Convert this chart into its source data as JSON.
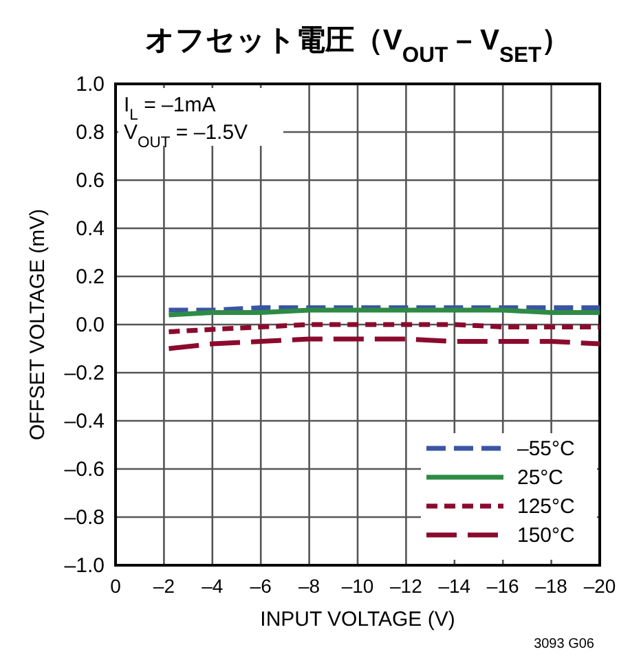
{
  "chart_data": {
    "type": "line",
    "title": "オフセット電圧（V$_{OUT}$ – V$_{SET}$）",
    "xlabel": "INPUT VOLTAGE (V)",
    "ylabel": "OFFSET VOLTAGE (mV)",
    "annotations": [
      "I$_{L}$ = –1mA",
      "V$_{OUT}$ = –1.5V",
      "3093 G06"
    ],
    "x": [
      -2.2,
      -4,
      -6,
      -8,
      -10,
      -12,
      -14,
      -16,
      -18,
      -20
    ],
    "series": [
      {
        "name": "–55°C",
        "color": "#3a55a4",
        "line_style": "dashed",
        "values": [
          0.06,
          0.06,
          0.07,
          0.07,
          0.07,
          0.07,
          0.07,
          0.07,
          0.07,
          0.07
        ]
      },
      {
        "name": "25°C",
        "color": "#2e8b45",
        "line_style": "solid",
        "values": [
          0.04,
          0.05,
          0.05,
          0.06,
          0.06,
          0.06,
          0.06,
          0.06,
          0.05,
          0.05
        ]
      },
      {
        "name": "125°C",
        "color": "#8b0a2e",
        "line_style": "dotted",
        "values": [
          -0.03,
          -0.02,
          -0.01,
          0.0,
          0.0,
          0.0,
          0.0,
          -0.01,
          -0.01,
          -0.01
        ]
      },
      {
        "name": "150°C",
        "color": "#8b0a2e",
        "line_style": "dashed",
        "values": [
          -0.1,
          -0.08,
          -0.07,
          -0.06,
          -0.06,
          -0.06,
          -0.07,
          -0.07,
          -0.07,
          -0.08
        ]
      }
    ],
    "xlim": [
      0,
      -20
    ],
    "ylim": [
      -1.0,
      1.0
    ],
    "xticks": [
      0,
      {
        "value": -2,
        "label": "–2"
      },
      {
        "value": -4,
        "label": "–4"
      },
      {
        "value": -6,
        "label": "–6"
      },
      {
        "value": -8,
        "label": "–8"
      },
      {
        "value": -10,
        "label": "–10"
      },
      {
        "value": -12,
        "label": "–12"
      },
      {
        "value": -14,
        "label": "–14"
      },
      {
        "value": -16,
        "label": "–16"
      },
      {
        "value": -18,
        "label": "–18"
      },
      {
        "value": -20,
        "label": "–20"
      }
    ],
    "yticks": [
      {
        "value": -1.0,
        "label": "–1.0"
      },
      {
        "value": -0.8,
        "label": "–0.8"
      },
      {
        "value": -0.6,
        "label": "–0.6"
      },
      {
        "value": -0.4,
        "label": "–0.4"
      },
      {
        "value": -0.2,
        "label": "–0.2"
      },
      {
        "value": 0,
        "label": "0.0"
      },
      {
        "value": 0.2,
        "label": "0.2"
      },
      {
        "value": 0.4,
        "label": "0.4"
      },
      {
        "value": 0.6,
        "label": "0.6"
      },
      {
        "value": 0.8,
        "label": "0.8"
      },
      {
        "value": 1.0,
        "label": "1.0"
      }
    ],
    "grid": true,
    "legend": "bottom right"
  }
}
